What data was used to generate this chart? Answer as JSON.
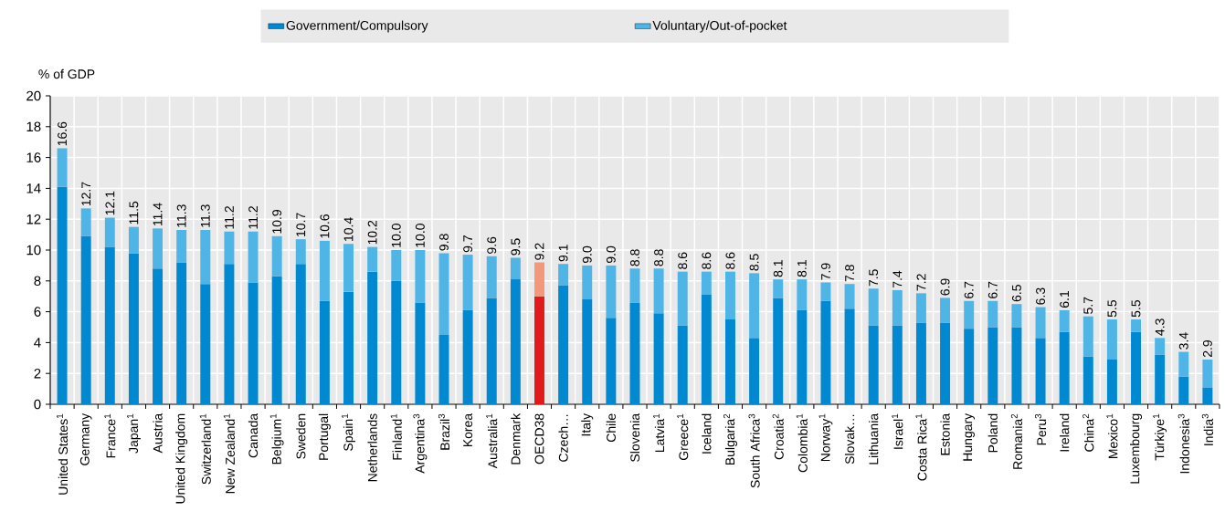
{
  "chart_data": {
    "type": "bar",
    "stacked": true,
    "ylabel": "% of GDP",
    "categories": [
      "United States$^{1}$",
      "Germany",
      "France$^{1}$",
      "Japan$^{1}$",
      "Austria",
      "United Kingdom",
      "Switzerland$^{1}$",
      "New Zealand$^{1}$",
      "Canada",
      "Belgium$^{1}$",
      "Sweden",
      "Portugal",
      "Spain$^{1}$",
      "Netherlands",
      "Finland$^{1}$",
      "Argentina$^{3}$",
      "Brazil$^{3}$",
      "Korea",
      "Australia$^{1}$",
      "Denmark",
      "OECD38",
      "Czech…",
      "Italy",
      "Chile",
      "Slovenia",
      "Latvia$^{1}$",
      "Greece$^{1}$",
      "Iceland",
      "Bulgaria$^{2}$",
      "South Africa$^{3}$",
      "Croatia$^{2}$",
      "Colombia$^{1}$",
      "Norway$^{1}$",
      "Slovak…",
      "Lithuania",
      "Israel$^{1}$",
      "Costa Rica$^{1}$",
      "Estonia",
      "Hungary",
      "Poland",
      "Romania$^{2}$",
      "Peru$^{3}$",
      "Ireland",
      "China$^{2}$",
      "Mexico$^{1}$",
      "Luxembourg",
      "Türkiye$^{1}$",
      "Indonesia$^{3}$",
      "India$^{3}$"
    ],
    "series": [
      {
        "name": "Government/Compulsory",
        "color": "#0088d1",
        "colors": [
          "#0088d1",
          "#0088d1",
          "#0088d1",
          "#0088d1",
          "#0088d1",
          "#0088d1",
          "#0088d1",
          "#0088d1",
          "#0088d1",
          "#0088d1",
          "#0088d1",
          "#0088d1",
          "#0088d1",
          "#0088d1",
          "#0088d1",
          "#0088d1",
          "#0088d1",
          "#0088d1",
          "#0088d1",
          "#0088d1",
          "#e31a1c",
          "#0088d1",
          "#0088d1",
          "#0088d1",
          "#0088d1",
          "#0088d1",
          "#0088d1",
          "#0088d1",
          "#0088d1",
          "#0088d1",
          "#0088d1",
          "#0088d1",
          "#0088d1",
          "#0088d1",
          "#0088d1",
          "#0088d1",
          "#0088d1",
          "#0088d1",
          "#0088d1",
          "#0088d1",
          "#0088d1",
          "#0088d1",
          "#0088d1",
          "#0088d1",
          "#0088d1",
          "#0088d1",
          "#0088d1",
          "#0088d1",
          "#0088d1"
        ],
        "values": [
          14.1,
          10.9,
          10.2,
          9.8,
          8.8,
          9.2,
          7.8,
          9.1,
          7.9,
          8.3,
          9.1,
          6.7,
          7.3,
          8.6,
          8.0,
          6.6,
          4.5,
          6.1,
          6.9,
          8.1,
          7.0,
          7.7,
          6.8,
          5.6,
          6.6,
          5.9,
          5.1,
          7.1,
          5.5,
          4.3,
          6.9,
          6.1,
          6.7,
          6.2,
          5.1,
          5.1,
          5.3,
          5.3,
          4.9,
          5.0,
          5.0,
          4.3,
          4.7,
          3.1,
          2.9,
          4.7,
          3.2,
          1.8,
          1.1
        ]
      },
      {
        "name": "Voluntary/Out-of-pocket",
        "color": "#4fb5e6",
        "colors": [
          "#4fb5e6",
          "#4fb5e6",
          "#4fb5e6",
          "#4fb5e6",
          "#4fb5e6",
          "#4fb5e6",
          "#4fb5e6",
          "#4fb5e6",
          "#4fb5e6",
          "#4fb5e6",
          "#4fb5e6",
          "#4fb5e6",
          "#4fb5e6",
          "#4fb5e6",
          "#4fb5e6",
          "#4fb5e6",
          "#4fb5e6",
          "#4fb5e6",
          "#4fb5e6",
          "#4fb5e6",
          "#f4977b",
          "#4fb5e6",
          "#4fb5e6",
          "#4fb5e6",
          "#4fb5e6",
          "#4fb5e6",
          "#4fb5e6",
          "#4fb5e6",
          "#4fb5e6",
          "#4fb5e6",
          "#4fb5e6",
          "#4fb5e6",
          "#4fb5e6",
          "#4fb5e6",
          "#4fb5e6",
          "#4fb5e6",
          "#4fb5e6",
          "#4fb5e6",
          "#4fb5e6",
          "#4fb5e6",
          "#4fb5e6",
          "#4fb5e6",
          "#4fb5e6",
          "#4fb5e6",
          "#4fb5e6",
          "#4fb5e6",
          "#4fb5e6",
          "#4fb5e6",
          "#4fb5e6"
        ],
        "values": [
          2.5,
          1.8,
          1.9,
          1.7,
          2.6,
          2.1,
          3.5,
          2.1,
          3.3,
          2.6,
          1.6,
          3.9,
          3.1,
          1.6,
          2.0,
          3.4,
          5.3,
          3.6,
          2.7,
          1.4,
          2.2,
          1.4,
          2.2,
          3.4,
          2.2,
          2.9,
          3.5,
          1.5,
          3.1,
          4.2,
          1.2,
          2.0,
          1.2,
          1.6,
          2.4,
          2.3,
          1.9,
          1.6,
          1.8,
          1.7,
          1.5,
          2.0,
          1.4,
          2.6,
          2.6,
          0.8,
          1.1,
          1.6,
          1.8
        ]
      }
    ],
    "totals": [
      "16.6",
      "12.7",
      "12.1",
      "11.5",
      "11.4",
      "11.3",
      "11.3",
      "11.2",
      "11.2",
      "10.9",
      "10.7",
      "10.6",
      "10.4",
      "10.2",
      "10.0",
      "10.0",
      "9.8",
      "9.7",
      "9.6",
      "9.5",
      "9.2",
      "9.1",
      "9.0",
      "9.0",
      "8.8",
      "8.8",
      "8.6",
      "8.6",
      "8.6",
      "8.5",
      "8.1",
      "8.1",
      "7.9",
      "7.8",
      "7.5",
      "7.4",
      "7.2",
      "6.9",
      "6.7",
      "6.7",
      "6.5",
      "6.3",
      "6.1",
      "5.7",
      "5.5",
      "5.5",
      "4.3",
      "3.4",
      "2.9"
    ],
    "ylim": [
      0,
      20
    ],
    "yticks": [
      0,
      2,
      4,
      6,
      8,
      10,
      12,
      14,
      16,
      18,
      20
    ],
    "grid": true,
    "legend": "top"
  }
}
